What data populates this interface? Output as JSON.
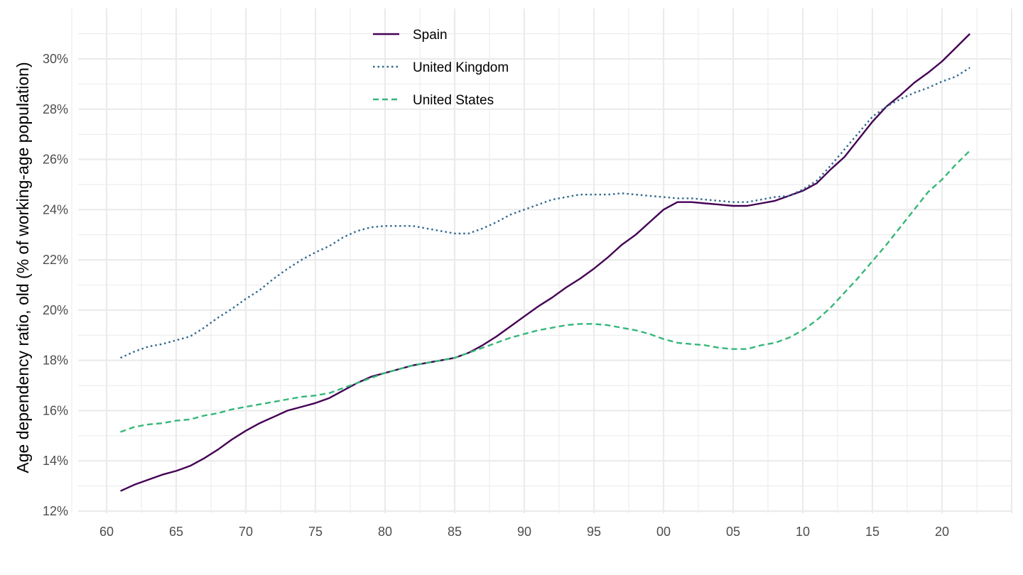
{
  "chart_data": {
    "type": "line",
    "title": "",
    "xlabel": "",
    "ylabel": "Age dependency ratio, old (% of working-age population)",
    "x": [
      1961,
      1962,
      1963,
      1964,
      1965,
      1966,
      1967,
      1968,
      1969,
      1970,
      1971,
      1972,
      1973,
      1974,
      1975,
      1976,
      1977,
      1978,
      1979,
      1980,
      1981,
      1982,
      1983,
      1984,
      1985,
      1986,
      1987,
      1988,
      1989,
      1990,
      1991,
      1992,
      1993,
      1994,
      1995,
      1996,
      1997,
      1998,
      1999,
      2000,
      2001,
      2002,
      2003,
      2004,
      2005,
      2006,
      2007,
      2008,
      2009,
      2010,
      2011,
      2012,
      2013,
      2014,
      2015,
      2016,
      2017,
      2018,
      2019,
      2020,
      2021,
      2022
    ],
    "xlim": [
      1958,
      2025
    ],
    "ylim": [
      12,
      31.5
    ],
    "x_ticks": [
      1960,
      1965,
      1970,
      1975,
      1980,
      1985,
      1990,
      1995,
      2000,
      2005,
      2010,
      2015,
      2020
    ],
    "x_tick_labels": [
      "60",
      "65",
      "70",
      "75",
      "80",
      "85",
      "90",
      "95",
      "00",
      "05",
      "10",
      "15",
      "20"
    ],
    "y_ticks": [
      12,
      14,
      16,
      18,
      20,
      22,
      24,
      26,
      28,
      30
    ],
    "y_tick_labels": [
      "12%",
      "14%",
      "16%",
      "18%",
      "20%",
      "22%",
      "24%",
      "26%",
      "28%",
      "30%"
    ],
    "grid": true,
    "legend_position": "top-center",
    "series": [
      {
        "name": "Spain",
        "color": "#440154",
        "dash": "solid",
        "values": [
          12.8,
          13.05,
          13.25,
          13.45,
          13.6,
          13.8,
          14.1,
          14.45,
          14.85,
          15.2,
          15.5,
          15.75,
          16.0,
          16.15,
          16.3,
          16.5,
          16.8,
          17.1,
          17.35,
          17.5,
          17.65,
          17.8,
          17.9,
          18.0,
          18.1,
          18.3,
          18.6,
          18.95,
          19.35,
          19.75,
          20.15,
          20.5,
          20.9,
          21.25,
          21.65,
          22.1,
          22.6,
          23.0,
          23.5,
          24.0,
          24.3,
          24.3,
          24.25,
          24.2,
          24.15,
          24.15,
          24.25,
          24.35,
          24.55,
          24.75,
          25.05,
          25.6,
          26.1,
          26.8,
          27.5,
          28.1,
          28.55,
          29.05,
          29.45,
          29.9,
          30.45,
          31.0
        ]
      },
      {
        "name": "United Kingdom",
        "color": "#31688E",
        "dash": "dotted",
        "values": [
          18.1,
          18.35,
          18.55,
          18.65,
          18.8,
          18.95,
          19.3,
          19.7,
          20.05,
          20.45,
          20.8,
          21.25,
          21.65,
          22.0,
          22.3,
          22.55,
          22.9,
          23.15,
          23.3,
          23.35,
          23.35,
          23.35,
          23.25,
          23.15,
          23.05,
          23.05,
          23.25,
          23.5,
          23.8,
          24.0,
          24.2,
          24.4,
          24.5,
          24.6,
          24.6,
          24.6,
          24.65,
          24.6,
          24.55,
          24.5,
          24.45,
          24.45,
          24.4,
          24.35,
          24.3,
          24.3,
          24.4,
          24.5,
          24.55,
          24.8,
          25.15,
          25.75,
          26.4,
          27.05,
          27.7,
          28.1,
          28.4,
          28.65,
          28.85,
          29.1,
          29.3,
          29.65
        ]
      },
      {
        "name": "United States",
        "color": "#35B779",
        "dash": "dashed",
        "values": [
          15.15,
          15.35,
          15.45,
          15.5,
          15.6,
          15.65,
          15.8,
          15.9,
          16.05,
          16.15,
          16.25,
          16.35,
          16.45,
          16.55,
          16.6,
          16.7,
          16.9,
          17.1,
          17.3,
          17.5,
          17.65,
          17.8,
          17.9,
          18.0,
          18.1,
          18.3,
          18.5,
          18.7,
          18.9,
          19.05,
          19.2,
          19.3,
          19.4,
          19.45,
          19.45,
          19.4,
          19.3,
          19.2,
          19.05,
          18.85,
          18.7,
          18.65,
          18.6,
          18.5,
          18.45,
          18.45,
          18.6,
          18.7,
          18.9,
          19.2,
          19.6,
          20.1,
          20.7,
          21.3,
          21.95,
          22.6,
          23.3,
          24.0,
          24.7,
          25.2,
          25.8,
          26.35
        ]
      }
    ]
  }
}
